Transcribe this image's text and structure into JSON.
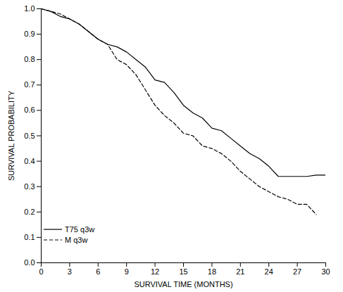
{
  "chart_data": {
    "type": "line",
    "x_label": "SURVIVAL TIME (MONTHS)",
    "y_label": "SURVIVAL PROBABILITY",
    "x": [
      0,
      1,
      2,
      3,
      4,
      5,
      6,
      7,
      8,
      9,
      10,
      11,
      12,
      13,
      14,
      15,
      16,
      17,
      18,
      19,
      20,
      21,
      22,
      23,
      24,
      25,
      26,
      27,
      28,
      29,
      30
    ],
    "series": [
      {
        "name": "T75 q3w",
        "color": "#000000",
        "line_style": "solid",
        "values": [
          1.0,
          0.99,
          0.97,
          0.96,
          0.94,
          0.91,
          0.88,
          0.86,
          0.85,
          0.83,
          0.8,
          0.77,
          0.72,
          0.71,
          0.67,
          0.62,
          0.59,
          0.57,
          0.53,
          0.52,
          0.49,
          0.46,
          0.43,
          0.41,
          0.38,
          0.34,
          0.34,
          0.34,
          0.34,
          0.345,
          0.345
        ]
      },
      {
        "name": "M q3w",
        "color": "#000000",
        "line_style": "dashed",
        "values": [
          1.0,
          0.99,
          0.98,
          0.96,
          0.94,
          0.91,
          0.88,
          0.86,
          0.8,
          0.78,
          0.74,
          0.68,
          0.62,
          0.58,
          0.55,
          0.51,
          0.5,
          0.46,
          0.45,
          0.43,
          0.4,
          0.36,
          0.33,
          0.3,
          0.28,
          0.26,
          0.25,
          0.23,
          0.23,
          0.19,
          null
        ]
      }
    ],
    "xlim": [
      0,
      30
    ],
    "xticks": [
      0,
      3,
      6,
      9,
      12,
      15,
      18,
      21,
      24,
      27,
      30
    ],
    "ylim": [
      0,
      1
    ],
    "yticks": [
      {
        "value": 0,
        "label": "0.0"
      },
      0.1,
      0.2,
      0.3,
      0.4,
      0.5,
      0.6,
      0.7,
      0.8,
      0.9,
      {
        "value": 1,
        "label": "1.0"
      }
    ],
    "legend": "lower left",
    "grid": false
  }
}
